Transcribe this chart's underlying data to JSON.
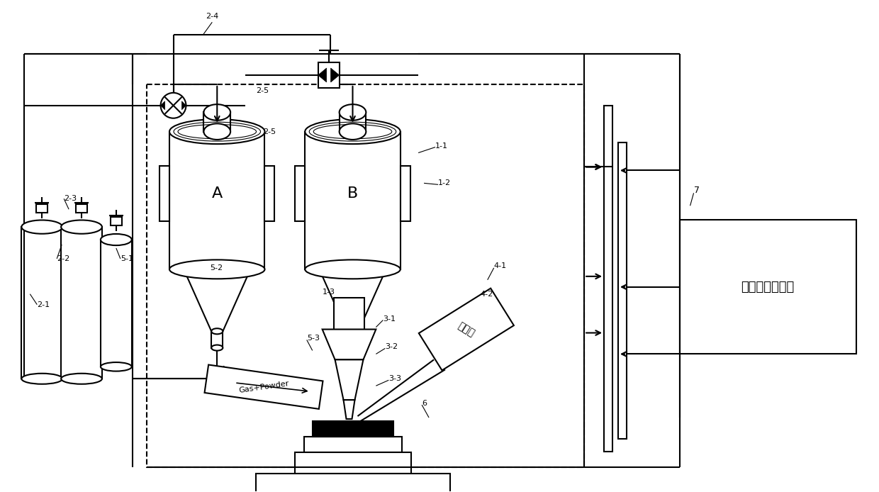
{
  "bg": "#ffffff",
  "lw": 1.5,
  "computer_text": "计算机控制中心",
  "laser_text": "激光器",
  "gas_text": "Gas+Powder",
  "label_A": "A",
  "label_B": "B",
  "figsize": [
    12.4,
    6.94
  ],
  "dpi": 100
}
